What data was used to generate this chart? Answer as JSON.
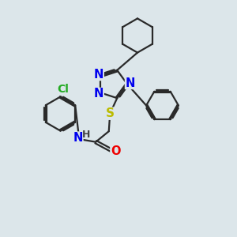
{
  "background_color": "#dce6ea",
  "bond_color": "#2a2a2a",
  "n_color": "#0000ee",
  "o_color": "#ee0000",
  "s_color": "#bbbb00",
  "cl_color": "#22aa22",
  "h_color": "#444444",
  "line_width": 1.6,
  "font_size": 10.5,
  "xlim": [
    0,
    10
  ],
  "ylim": [
    0,
    10
  ]
}
